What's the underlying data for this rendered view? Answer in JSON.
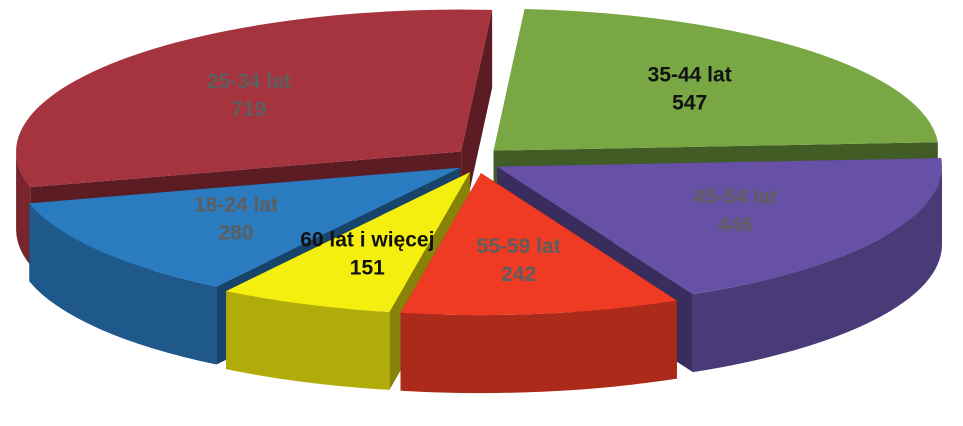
{
  "chart_data": {
    "type": "pie3d",
    "categories": [
      "35-44 lat",
      "45-54 lat",
      "55-59 lat",
      "60 lat i więcej",
      "18-24 lat",
      "25-34 lat"
    ],
    "values": [
      547,
      446,
      242,
      151,
      280,
      719
    ],
    "colors": [
      "#78a743",
      "#6651a7",
      "#ef3a24",
      "#f4ef0e",
      "#2b7bc1",
      "#a6343f"
    ]
  }
}
